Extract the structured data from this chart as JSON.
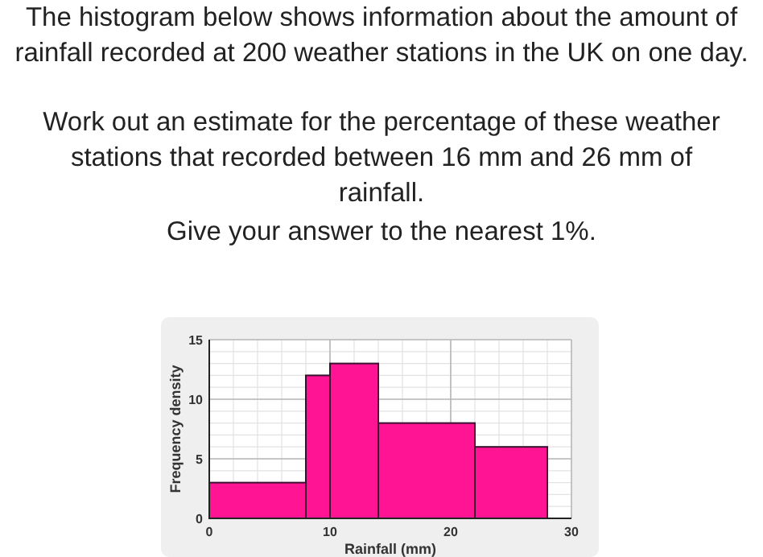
{
  "chart_data": {
    "type": "histogram",
    "title": "The histogram below shows information about the amount of rainfall recorded at 200 weather stations in the UK on one day.",
    "annotations": [
      "Work out an estimate for the percentage of these weather stations that recorded between 16 mm and 26 mm of rainfall.",
      "Give your answer to the nearest 1%."
    ],
    "xlabel": "Rainfall (mm)",
    "ylabel": "Frequency density",
    "bins": [
      0,
      8,
      10,
      14,
      22,
      28
    ],
    "values": [
      3,
      12,
      13,
      8,
      6
    ],
    "color": "#ff1493",
    "xlim": [
      0,
      30
    ],
    "ylim": [
      0,
      15
    ],
    "xticks": [
      0,
      10,
      20,
      30
    ],
    "yticks": [
      0,
      5,
      10,
      15
    ],
    "grid": true
  }
}
